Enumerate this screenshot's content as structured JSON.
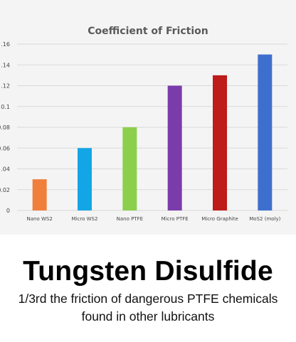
{
  "chart_data": {
    "type": "bar",
    "title": "Coefficient of Friction",
    "categories": [
      "Nano WS2",
      "Micro WS2",
      "Nano PTFE",
      "Micro PTFE",
      "Micro Graphite",
      "MoS2 (moly)"
    ],
    "values": [
      0.03,
      0.06,
      0.08,
      0.12,
      0.13,
      0.15
    ],
    "colors": [
      "#f07f3c",
      "#13a6e6",
      "#8ccf4d",
      "#7b3cab",
      "#be1b1b",
      "#3f6fce"
    ],
    "yticks": [
      ".16",
      ".14",
      ".12",
      "0.1",
      "0.08",
      "0.06",
      ".04",
      "0.02",
      "0"
    ],
    "ylim": [
      0,
      0.16
    ],
    "grid": true,
    "xlabel": "",
    "ylabel": ""
  },
  "headline": "Tungsten Disulfide",
  "subtitle_lines": [
    "1/3rd the friction of dangerous PTFE chemicals",
    "found in other lubricants"
  ]
}
